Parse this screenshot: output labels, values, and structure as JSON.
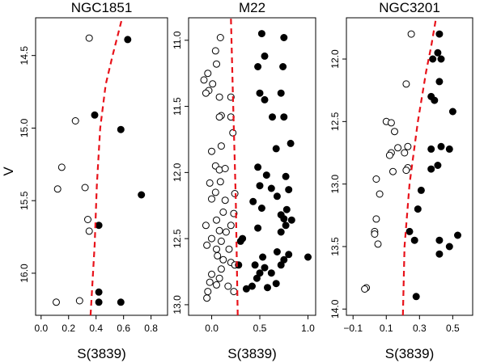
{
  "figure": {
    "ylabel": "V",
    "xlabel": "S(3839)"
  },
  "colors": {
    "points": "#000000",
    "curve": "#e8121a",
    "frame": "#000000"
  },
  "chart_data": [
    {
      "type": "scatter",
      "title": "NGC1851",
      "xlabel": "S(3839)",
      "ylabel": "V",
      "xlim": [
        -0.04,
        0.92
      ],
      "ylim": [
        16.29,
        14.24
      ],
      "y_inverted": true,
      "xticks": [
        0.0,
        0.2,
        0.4,
        0.6,
        0.8
      ],
      "xtick_labels": [
        "0.0",
        "0.2",
        "0.4",
        "0.6",
        "0.8"
      ],
      "yticks": [
        14.5,
        15.0,
        15.5,
        16.0
      ],
      "ytick_labels": [
        "14.5",
        "15.0",
        "15.5",
        "16.0"
      ],
      "grid": false,
      "series": [
        {
          "marker": "open-circle",
          "points": [
            [
              0.35,
              14.38
            ],
            [
              0.25,
              14.95
            ],
            [
              0.15,
              15.27
            ],
            [
              0.12,
              15.42
            ],
            [
              0.32,
              15.41
            ],
            [
              0.34,
              15.63
            ],
            [
              0.35,
              15.71
            ],
            [
              0.11,
              16.2
            ],
            [
              0.28,
              16.19
            ]
          ]
        },
        {
          "marker": "filled-circle",
          "points": [
            [
              0.63,
              14.39
            ],
            [
              0.39,
              14.91
            ],
            [
              0.58,
              15.01
            ],
            [
              0.73,
              15.46
            ],
            [
              0.42,
              15.67
            ],
            [
              0.42,
              16.13
            ],
            [
              0.42,
              16.2
            ],
            [
              0.58,
              16.2
            ]
          ]
        },
        {
          "marker": "dashed-line",
          "points": [
            [
              0.36,
              16.29
            ],
            [
              0.39,
              15.8
            ],
            [
              0.405,
              15.4
            ],
            [
              0.43,
              15.0
            ],
            [
              0.47,
              14.7
            ],
            [
              0.52,
              14.5
            ],
            [
              0.59,
              14.24
            ]
          ]
        }
      ]
    },
    {
      "type": "scatter",
      "title": "M22",
      "xlabel": "S(3839)",
      "ylabel": "",
      "xlim": [
        -0.24,
        1.08
      ],
      "ylim": [
        13.08,
        10.83
      ],
      "y_inverted": true,
      "xticks": [
        0.0,
        0.5,
        1.0
      ],
      "xtick_labels": [
        "0.0",
        "0.5",
        "1.0"
      ],
      "yticks": [
        11.0,
        11.5,
        12.0,
        12.5,
        13.0
      ],
      "ytick_labels": [
        "11.0",
        "11.5",
        "12.0",
        "12.5",
        "13.0"
      ],
      "grid": false,
      "series": [
        {
          "marker": "open-circle",
          "points": [
            [
              0.09,
              10.98
            ],
            [
              0.04,
              11.08
            ],
            [
              0.05,
              11.18
            ],
            [
              -0.04,
              11.25
            ],
            [
              -0.08,
              11.3
            ],
            [
              0.01,
              11.33
            ],
            [
              -0.03,
              11.38
            ],
            [
              -0.06,
              11.4
            ],
            [
              0.08,
              11.43
            ],
            [
              0.2,
              11.43
            ],
            [
              0.1,
              11.57
            ],
            [
              0.08,
              11.58
            ],
            [
              0.2,
              11.58
            ],
            [
              0.22,
              11.7
            ],
            [
              0.1,
              11.8
            ],
            [
              0.0,
              11.84
            ],
            [
              0.04,
              11.95
            ],
            [
              0.08,
              11.98
            ],
            [
              0.14,
              11.97
            ],
            [
              -0.02,
              12.08
            ],
            [
              0.09,
              12.07
            ],
            [
              0.04,
              12.15
            ],
            [
              0.24,
              12.16
            ],
            [
              0.0,
              12.2
            ],
            [
              0.14,
              12.21
            ],
            [
              0.12,
              12.3
            ],
            [
              0.23,
              12.31
            ],
            [
              0.05,
              12.36
            ],
            [
              -0.06,
              12.4
            ],
            [
              0.2,
              12.4
            ],
            [
              0.08,
              12.44
            ],
            [
              0.15,
              12.45
            ],
            [
              0.0,
              12.5
            ],
            [
              0.1,
              12.52
            ],
            [
              -0.05,
              12.55
            ],
            [
              0.05,
              12.58
            ],
            [
              0.18,
              12.58
            ],
            [
              0.06,
              12.63
            ],
            [
              0.12,
              12.66
            ],
            [
              0.2,
              12.68
            ],
            [
              0.24,
              12.7
            ],
            [
              0.1,
              12.73
            ],
            [
              0.0,
              12.77
            ],
            [
              0.08,
              12.8
            ],
            [
              -0.02,
              12.83
            ],
            [
              0.05,
              12.85
            ],
            [
              0.17,
              12.86
            ],
            [
              -0.04,
              12.9
            ],
            [
              0.23,
              12.9
            ],
            [
              -0.05,
              12.95
            ]
          ]
        },
        {
          "marker": "filled-circle",
          "points": [
            [
              0.52,
              10.95
            ],
            [
              0.75,
              10.98
            ],
            [
              0.48,
              11.2
            ],
            [
              0.55,
              11.12
            ],
            [
              0.74,
              11.2
            ],
            [
              0.72,
              11.4
            ],
            [
              0.5,
              11.4
            ],
            [
              0.55,
              11.45
            ],
            [
              0.63,
              11.58
            ],
            [
              0.75,
              11.58
            ],
            [
              0.82,
              11.78
            ],
            [
              0.67,
              11.82
            ],
            [
              0.48,
              11.96
            ],
            [
              0.77,
              12.03
            ],
            [
              0.57,
              12.02
            ],
            [
              0.5,
              12.1
            ],
            [
              0.62,
              12.12
            ],
            [
              0.8,
              12.13
            ],
            [
              0.68,
              12.18
            ],
            [
              0.43,
              12.22
            ],
            [
              0.52,
              12.27
            ],
            [
              0.78,
              12.28
            ],
            [
              0.72,
              12.32
            ],
            [
              0.75,
              12.35
            ],
            [
              0.83,
              12.36
            ],
            [
              0.77,
              12.4
            ],
            [
              0.48,
              12.42
            ],
            [
              0.72,
              12.45
            ],
            [
              0.32,
              12.5
            ],
            [
              0.3,
              12.52
            ],
            [
              0.68,
              12.6
            ],
            [
              0.8,
              12.62
            ],
            [
              0.53,
              12.64
            ],
            [
              0.75,
              12.66
            ],
            [
              0.28,
              12.7
            ],
            [
              0.45,
              12.7
            ],
            [
              0.55,
              12.72
            ],
            [
              0.72,
              12.7
            ],
            [
              0.5,
              12.76
            ],
            [
              0.62,
              12.76
            ],
            [
              0.47,
              12.8
            ],
            [
              0.67,
              12.84
            ],
            [
              0.42,
              12.86
            ],
            [
              0.58,
              12.87
            ],
            [
              1.0,
              12.64
            ],
            [
              0.36,
              12.88
            ]
          ]
        },
        {
          "marker": "dashed-line",
          "points": [
            [
              0.27,
              13.08
            ],
            [
              0.25,
              12.2
            ],
            [
              0.22,
              11.4
            ],
            [
              0.2,
              10.83
            ]
          ]
        }
      ]
    },
    {
      "type": "scatter",
      "title": "NGC3201",
      "xlabel": "S(3839)",
      "ylabel": "",
      "xlim": [
        -0.14,
        0.62
      ],
      "ylim": [
        14.05,
        11.67
      ],
      "y_inverted": true,
      "xticks": [
        -0.1,
        0.1,
        0.3,
        0.5
      ],
      "xtick_labels": [
        "−0.1",
        "0.1",
        "0.3",
        "0.5"
      ],
      "yticks": [
        12.0,
        12.5,
        13.0,
        13.5,
        14.0
      ],
      "ytick_labels": [
        "12.0",
        "12.5",
        "13.0",
        "13.5",
        "14.0"
      ],
      "grid": false,
      "series": [
        {
          "marker": "open-circle",
          "points": [
            [
              0.25,
              11.8
            ],
            [
              0.22,
              12.2
            ],
            [
              0.1,
              12.5
            ],
            [
              0.13,
              12.51
            ],
            [
              0.15,
              12.58
            ],
            [
              0.17,
              12.71
            ],
            [
              0.23,
              12.7
            ],
            [
              0.13,
              12.75
            ],
            [
              0.12,
              12.77
            ],
            [
              0.21,
              12.75
            ],
            [
              0.23,
              12.87
            ],
            [
              0.22,
              12.89
            ],
            [
              0.14,
              12.9
            ],
            [
              0.04,
              12.96
            ],
            [
              0.06,
              13.08
            ],
            [
              0.04,
              13.28
            ],
            [
              0.03,
              13.38
            ],
            [
              0.03,
              13.4
            ],
            [
              0.05,
              13.48
            ],
            [
              -0.02,
              13.83
            ],
            [
              -0.03,
              13.84
            ]
          ]
        },
        {
          "marker": "filled-circle",
          "points": [
            [
              0.42,
              11.8
            ],
            [
              0.41,
              11.95
            ],
            [
              0.43,
              12.0
            ],
            [
              0.38,
              12.0
            ],
            [
              0.42,
              12.18
            ],
            [
              0.37,
              12.3
            ],
            [
              0.39,
              12.33
            ],
            [
              0.5,
              12.42
            ],
            [
              0.37,
              12.72
            ],
            [
              0.43,
              12.7
            ],
            [
              0.48,
              12.72
            ],
            [
              0.37,
              12.88
            ],
            [
              0.41,
              12.85
            ],
            [
              0.31,
              13.05
            ],
            [
              0.29,
              13.2
            ],
            [
              0.24,
              13.38
            ],
            [
              0.27,
              13.45
            ],
            [
              0.42,
              13.45
            ],
            [
              0.48,
              13.5
            ],
            [
              0.53,
              13.41
            ],
            [
              0.42,
              13.56
            ],
            [
              0.28,
              13.9
            ]
          ]
        },
        {
          "marker": "dashed-line",
          "points": [
            [
              0.2,
              14.05
            ],
            [
              0.21,
              13.5
            ],
            [
              0.24,
              13.0
            ],
            [
              0.29,
              12.5
            ],
            [
              0.34,
              12.1
            ],
            [
              0.37,
              11.9
            ],
            [
              0.4,
              11.67
            ]
          ]
        }
      ]
    }
  ]
}
